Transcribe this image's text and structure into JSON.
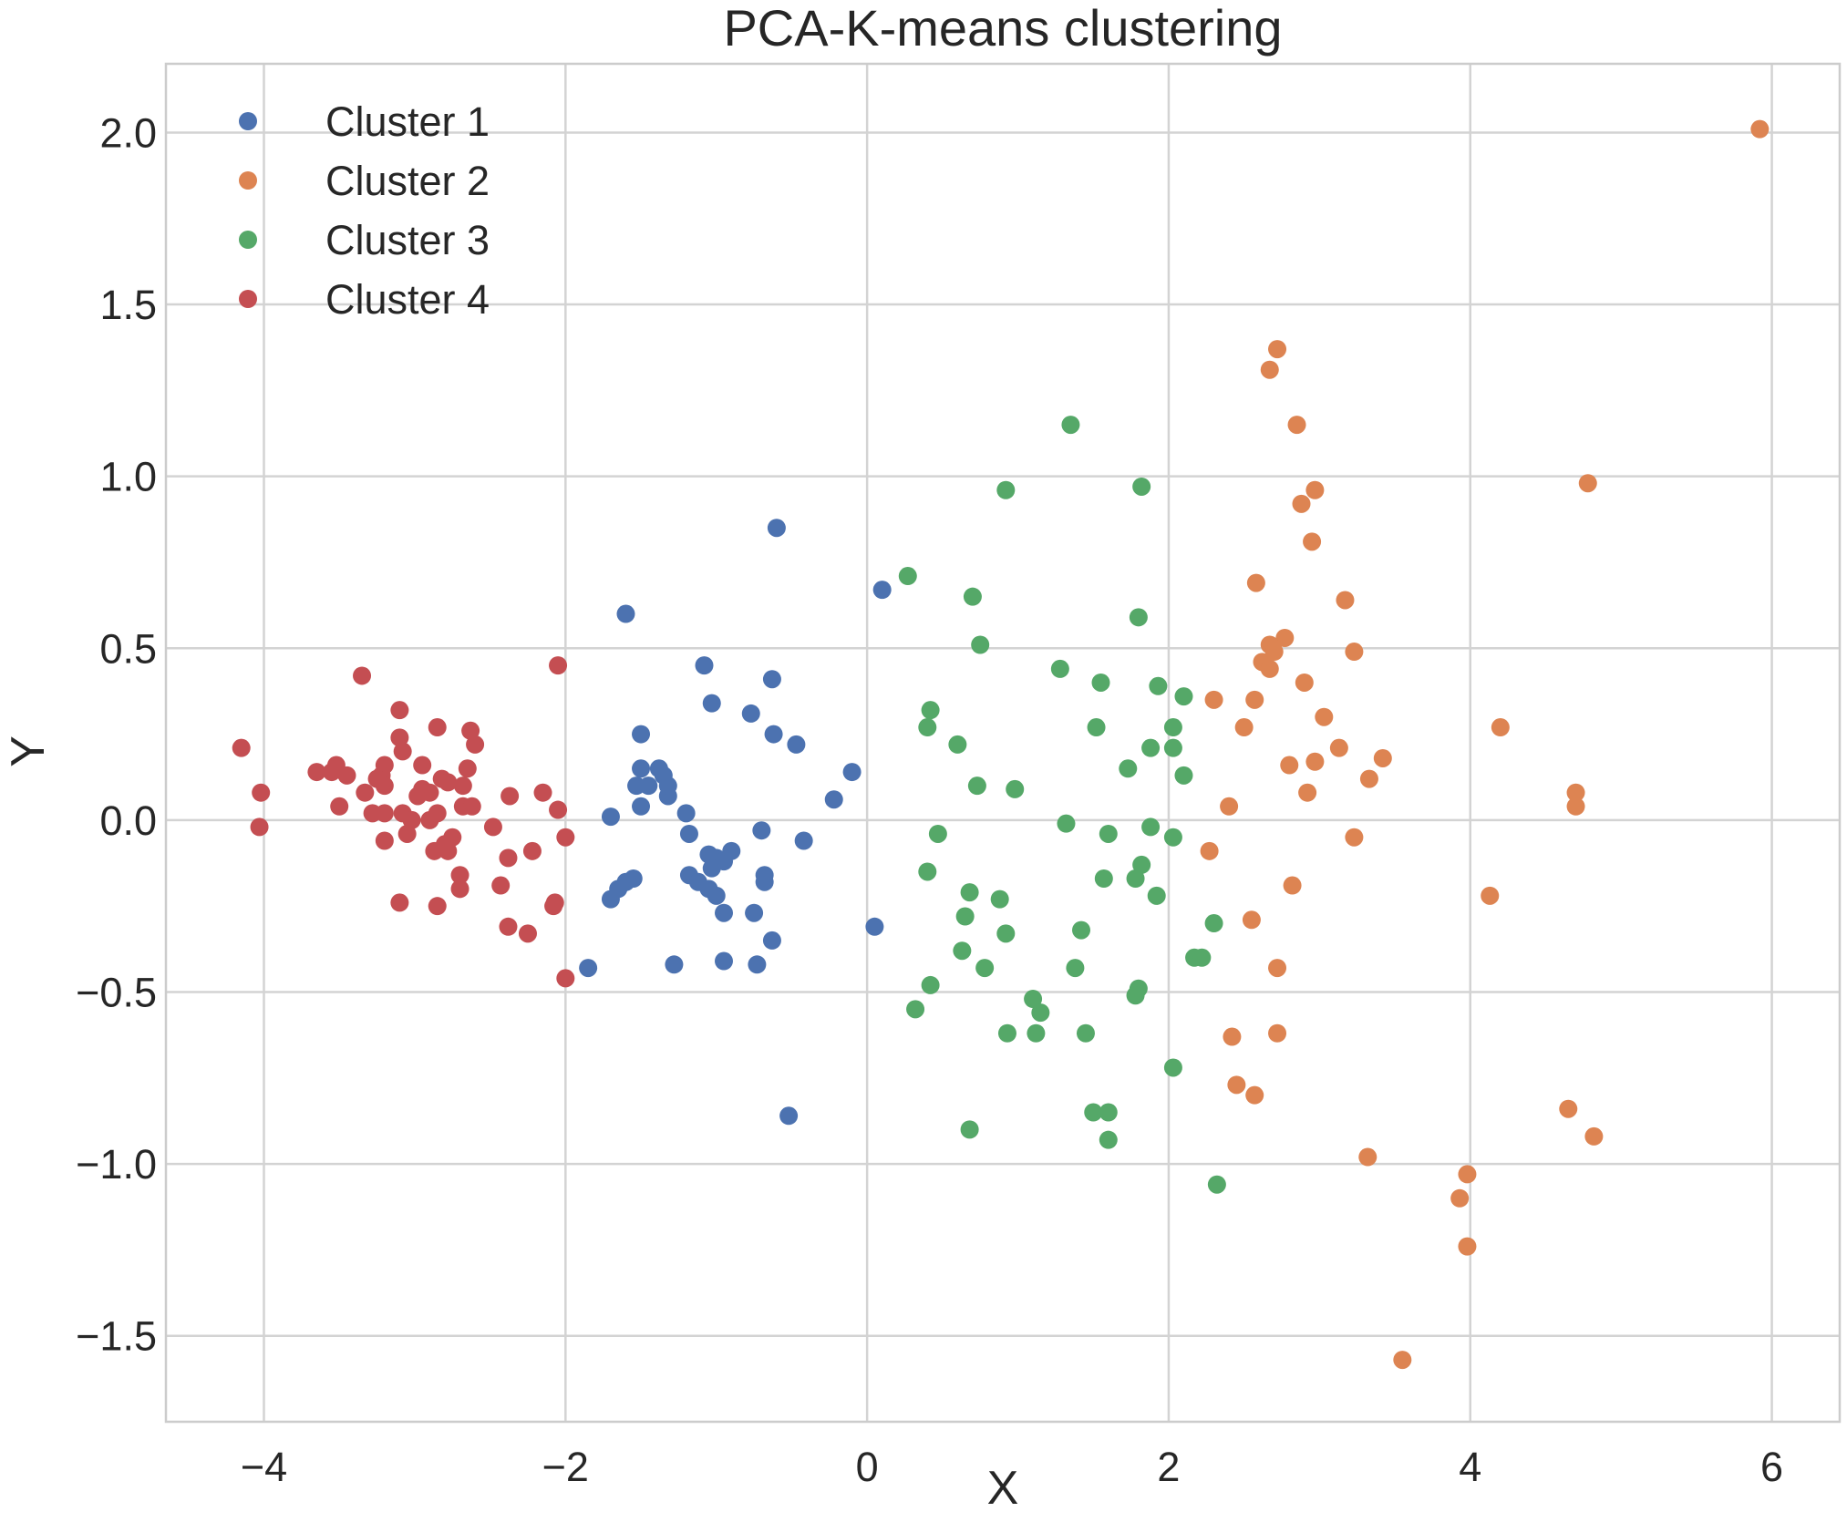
{
  "chart_data": {
    "type": "scatter",
    "title": "PCA-K-means clustering",
    "xlabel": "X",
    "ylabel": "Y",
    "xlim": [
      -4.65,
      6.45
    ],
    "ylim": [
      -1.75,
      2.2
    ],
    "xticks": [
      -4,
      -2,
      0,
      2,
      4,
      6
    ],
    "xtick_labels": [
      "−4",
      "−2",
      "0",
      "2",
      "4",
      "6"
    ],
    "yticks": [
      -1.5,
      -1.0,
      -0.5,
      0.0,
      0.5,
      1.0,
      1.5,
      2.0
    ],
    "ytick_labels": [
      "−1.5",
      "−1.0",
      "−0.5",
      "0.0",
      "0.5",
      "1.0",
      "1.5",
      "2.0"
    ],
    "grid": true,
    "legend_position": "top-left",
    "series": [
      {
        "name": "Cluster 1",
        "color": "#4c72b0",
        "points": [
          [
            -0.6,
            0.85
          ],
          [
            0.1,
            0.67
          ],
          [
            -1.6,
            0.6
          ],
          [
            -1.08,
            0.45
          ],
          [
            -0.63,
            0.41
          ],
          [
            -1.03,
            0.34
          ],
          [
            -0.77,
            0.31
          ],
          [
            -1.5,
            0.25
          ],
          [
            -0.62,
            0.25
          ],
          [
            -0.47,
            0.22
          ],
          [
            -1.5,
            0.15
          ],
          [
            -1.38,
            0.15
          ],
          [
            -1.35,
            0.13
          ],
          [
            -1.53,
            0.1
          ],
          [
            -1.45,
            0.1
          ],
          [
            -1.32,
            0.07
          ],
          [
            -1.32,
            0.1
          ],
          [
            -0.1,
            0.14
          ],
          [
            -0.22,
            0.06
          ],
          [
            -1.5,
            0.04
          ],
          [
            -1.7,
            0.01
          ],
          [
            -1.2,
            0.02
          ],
          [
            -0.7,
            -0.03
          ],
          [
            -1.18,
            -0.04
          ],
          [
            -0.42,
            -0.06
          ],
          [
            -0.9,
            -0.09
          ],
          [
            -1.05,
            -0.1
          ],
          [
            -1.0,
            -0.11
          ],
          [
            -0.95,
            -0.12
          ],
          [
            -1.03,
            -0.14
          ],
          [
            -1.18,
            -0.16
          ],
          [
            -1.12,
            -0.18
          ],
          [
            -1.05,
            -0.2
          ],
          [
            -0.68,
            -0.16
          ],
          [
            -0.68,
            -0.18
          ],
          [
            -1.55,
            -0.17
          ],
          [
            -1.6,
            -0.18
          ],
          [
            -1.65,
            -0.2
          ],
          [
            -1.7,
            -0.23
          ],
          [
            -1.0,
            -0.22
          ],
          [
            -0.75,
            -0.27
          ],
          [
            -0.95,
            -0.27
          ],
          [
            0.05,
            -0.31
          ],
          [
            -0.63,
            -0.35
          ],
          [
            -1.85,
            -0.43
          ],
          [
            -1.28,
            -0.42
          ],
          [
            -0.95,
            -0.41
          ],
          [
            -0.73,
            -0.42
          ],
          [
            -0.52,
            -0.86
          ]
        ]
      },
      {
        "name": "Cluster 2",
        "color": "#dd8452",
        "points": [
          [
            5.92,
            2.01
          ],
          [
            2.72,
            1.37
          ],
          [
            2.67,
            1.31
          ],
          [
            2.85,
            1.15
          ],
          [
            4.78,
            0.98
          ],
          [
            2.97,
            0.96
          ],
          [
            2.88,
            0.92
          ],
          [
            2.95,
            0.81
          ],
          [
            2.58,
            0.69
          ],
          [
            3.17,
            0.64
          ],
          [
            2.77,
            0.53
          ],
          [
            2.67,
            0.51
          ],
          [
            2.7,
            0.49
          ],
          [
            3.23,
            0.49
          ],
          [
            2.62,
            0.46
          ],
          [
            2.67,
            0.44
          ],
          [
            2.9,
            0.4
          ],
          [
            2.3,
            0.35
          ],
          [
            2.57,
            0.35
          ],
          [
            3.03,
            0.3
          ],
          [
            2.5,
            0.27
          ],
          [
            4.2,
            0.27
          ],
          [
            3.13,
            0.21
          ],
          [
            3.42,
            0.18
          ],
          [
            2.97,
            0.17
          ],
          [
            2.8,
            0.16
          ],
          [
            3.33,
            0.12
          ],
          [
            4.7,
            0.08
          ],
          [
            2.92,
            0.08
          ],
          [
            2.4,
            0.04
          ],
          [
            4.7,
            0.04
          ],
          [
            3.23,
            -0.05
          ],
          [
            2.27,
            -0.09
          ],
          [
            2.82,
            -0.19
          ],
          [
            4.13,
            -0.22
          ],
          [
            2.55,
            -0.29
          ],
          [
            2.72,
            -0.43
          ],
          [
            2.42,
            -0.63
          ],
          [
            2.72,
            -0.62
          ],
          [
            2.45,
            -0.77
          ],
          [
            2.57,
            -0.8
          ],
          [
            4.65,
            -0.84
          ],
          [
            4.82,
            -0.92
          ],
          [
            3.32,
            -0.98
          ],
          [
            3.98,
            -1.03
          ],
          [
            3.93,
            -1.1
          ],
          [
            3.98,
            -1.24
          ],
          [
            3.55,
            -1.57
          ]
        ]
      },
      {
        "name": "Cluster 3",
        "color": "#55a868",
        "points": [
          [
            1.35,
            1.15
          ],
          [
            0.92,
            0.96
          ],
          [
            1.82,
            0.97
          ],
          [
            0.27,
            0.71
          ],
          [
            0.7,
            0.65
          ],
          [
            1.8,
            0.59
          ],
          [
            0.75,
            0.51
          ],
          [
            1.28,
            0.44
          ],
          [
            1.55,
            0.4
          ],
          [
            1.93,
            0.39
          ],
          [
            2.1,
            0.36
          ],
          [
            0.42,
            0.32
          ],
          [
            0.4,
            0.27
          ],
          [
            1.52,
            0.27
          ],
          [
            2.03,
            0.27
          ],
          [
            0.6,
            0.22
          ],
          [
            1.88,
            0.21
          ],
          [
            2.03,
            0.21
          ],
          [
            1.73,
            0.15
          ],
          [
            2.1,
            0.13
          ],
          [
            0.73,
            0.1
          ],
          [
            0.98,
            0.09
          ],
          [
            1.32,
            -0.01
          ],
          [
            1.88,
            -0.02
          ],
          [
            0.47,
            -0.04
          ],
          [
            1.6,
            -0.04
          ],
          [
            2.03,
            -0.05
          ],
          [
            1.82,
            -0.13
          ],
          [
            0.4,
            -0.15
          ],
          [
            1.78,
            -0.17
          ],
          [
            1.57,
            -0.17
          ],
          [
            0.68,
            -0.21
          ],
          [
            1.92,
            -0.22
          ],
          [
            0.88,
            -0.23
          ],
          [
            0.65,
            -0.28
          ],
          [
            2.3,
            -0.3
          ],
          [
            1.42,
            -0.32
          ],
          [
            0.92,
            -0.33
          ],
          [
            0.63,
            -0.38
          ],
          [
            2.17,
            -0.4
          ],
          [
            2.22,
            -0.4
          ],
          [
            0.78,
            -0.43
          ],
          [
            1.38,
            -0.43
          ],
          [
            0.42,
            -0.48
          ],
          [
            1.8,
            -0.49
          ],
          [
            1.78,
            -0.51
          ],
          [
            1.1,
            -0.52
          ],
          [
            1.15,
            -0.56
          ],
          [
            0.32,
            -0.55
          ],
          [
            0.93,
            -0.62
          ],
          [
            1.12,
            -0.62
          ],
          [
            1.45,
            -0.62
          ],
          [
            2.03,
            -0.72
          ],
          [
            1.5,
            -0.85
          ],
          [
            1.6,
            -0.85
          ],
          [
            0.68,
            -0.9
          ],
          [
            1.6,
            -0.93
          ],
          [
            2.32,
            -1.06
          ]
        ]
      },
      {
        "name": "Cluster 4",
        "color": "#c44e52",
        "points": [
          [
            -3.35,
            0.42
          ],
          [
            -2.05,
            0.45
          ],
          [
            -3.1,
            0.32
          ],
          [
            -2.85,
            0.27
          ],
          [
            -2.63,
            0.26
          ],
          [
            -3.1,
            0.24
          ],
          [
            -2.6,
            0.22
          ],
          [
            -4.15,
            0.21
          ],
          [
            -3.08,
            0.2
          ],
          [
            -3.2,
            0.16
          ],
          [
            -3.52,
            0.16
          ],
          [
            -2.65,
            0.15
          ],
          [
            -3.22,
            0.13
          ],
          [
            -2.95,
            0.16
          ],
          [
            -2.82,
            0.12
          ],
          [
            -3.55,
            0.14
          ],
          [
            -3.65,
            0.14
          ],
          [
            -3.45,
            0.13
          ],
          [
            -3.25,
            0.12
          ],
          [
            -2.78,
            0.11
          ],
          [
            -2.68,
            0.1
          ],
          [
            -3.2,
            0.1
          ],
          [
            -2.95,
            0.09
          ],
          [
            -2.9,
            0.08
          ],
          [
            -2.98,
            0.07
          ],
          [
            -3.33,
            0.08
          ],
          [
            -2.37,
            0.07
          ],
          [
            -2.15,
            0.08
          ],
          [
            -4.02,
            0.08
          ],
          [
            -2.68,
            0.04
          ],
          [
            -2.62,
            0.04
          ],
          [
            -3.5,
            0.04
          ],
          [
            -2.05,
            0.03
          ],
          [
            -3.28,
            0.02
          ],
          [
            -3.2,
            0.02
          ],
          [
            -3.08,
            0.02
          ],
          [
            -2.9,
            0.0
          ],
          [
            -2.85,
            0.02
          ],
          [
            -3.02,
            0.0
          ],
          [
            -2.48,
            -0.02
          ],
          [
            -4.03,
            -0.02
          ],
          [
            -3.05,
            -0.04
          ],
          [
            -2.75,
            -0.05
          ],
          [
            -2.8,
            -0.07
          ],
          [
            -2.87,
            -0.09
          ],
          [
            -3.2,
            -0.06
          ],
          [
            -2.0,
            -0.05
          ],
          [
            -2.78,
            -0.09
          ],
          [
            -2.22,
            -0.09
          ],
          [
            -2.38,
            -0.11
          ],
          [
            -2.7,
            -0.16
          ],
          [
            -2.43,
            -0.19
          ],
          [
            -2.7,
            -0.2
          ],
          [
            -2.07,
            -0.24
          ],
          [
            -2.08,
            -0.25
          ],
          [
            -3.1,
            -0.24
          ],
          [
            -2.85,
            -0.25
          ],
          [
            -2.38,
            -0.31
          ],
          [
            -2.25,
            -0.33
          ],
          [
            -2.0,
            -0.46
          ]
        ]
      }
    ]
  }
}
